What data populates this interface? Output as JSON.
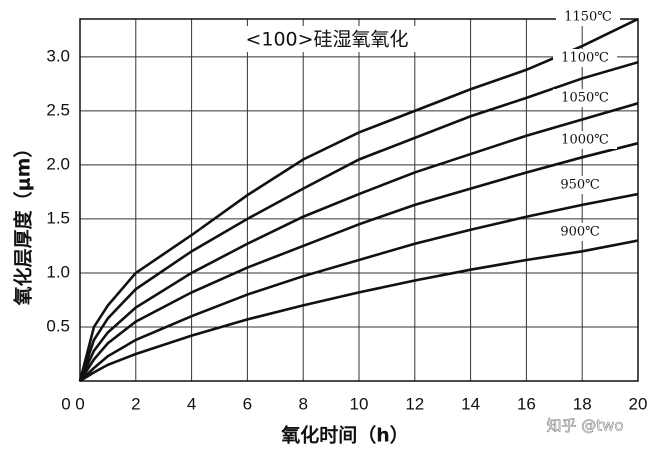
{
  "chart_data": {
    "type": "line",
    "title": "<100>硅湿氧氧化",
    "x_label": "氧化时间（h）",
    "y_label": "氧化层厚度（μm）",
    "watermark": "知乎 @two",
    "x": [
      0,
      0.5,
      1,
      2,
      4,
      6,
      8,
      10,
      12,
      14,
      16,
      18,
      20
    ],
    "xlim": [
      0,
      20
    ],
    "xticks": [
      0,
      2,
      4,
      6,
      8,
      10,
      12,
      14,
      16,
      18,
      20
    ],
    "ylim": [
      0,
      3.35
    ],
    "yticks": [
      {
        "value": 0,
        "label": "0"
      },
      0.5,
      {
        "value": 1,
        "label": "1.0"
      },
      1.5,
      {
        "value": 2,
        "label": "2.0"
      },
      2.5,
      {
        "value": 3,
        "label": "3.0"
      }
    ],
    "grid": true,
    "series": [
      {
        "name": "1150℃",
        "color": "#111111",
        "values": [
          0,
          0.5,
          0.7,
          1.0,
          1.35,
          1.72,
          2.05,
          2.3,
          2.5,
          2.7,
          2.88,
          3.1,
          3.35
        ]
      },
      {
        "name": "1100℃",
        "color": "#111111",
        "values": [
          0,
          0.38,
          0.58,
          0.85,
          1.2,
          1.5,
          1.78,
          2.05,
          2.25,
          2.45,
          2.62,
          2.8,
          2.95
        ]
      },
      {
        "name": "1050℃",
        "color": "#111111",
        "values": [
          0,
          0.28,
          0.45,
          0.68,
          1.0,
          1.27,
          1.52,
          1.73,
          1.93,
          2.1,
          2.27,
          2.42,
          2.57
        ]
      },
      {
        "name": "1000℃",
        "color": "#111111",
        "values": [
          0,
          0.2,
          0.35,
          0.55,
          0.82,
          1.05,
          1.25,
          1.45,
          1.63,
          1.78,
          1.93,
          2.07,
          2.2
        ]
      },
      {
        "name": "950℃",
        "color": "#111111",
        "values": [
          0,
          0.12,
          0.23,
          0.38,
          0.6,
          0.8,
          0.97,
          1.12,
          1.27,
          1.4,
          1.52,
          1.63,
          1.73
        ]
      },
      {
        "name": "900℃",
        "color": "#111111",
        "values": [
          0,
          0.08,
          0.15,
          0.25,
          0.42,
          0.57,
          0.7,
          0.82,
          0.93,
          1.03,
          1.12,
          1.2,
          1.3
        ]
      }
    ]
  }
}
